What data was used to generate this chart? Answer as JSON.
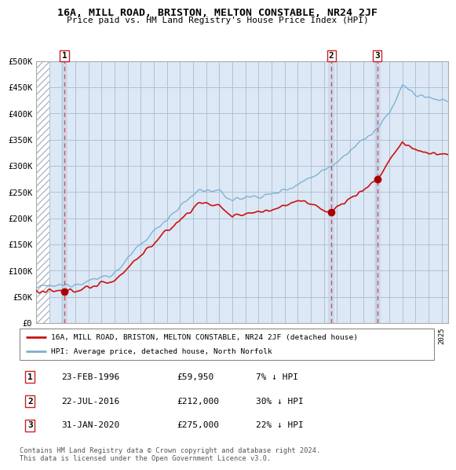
{
  "title": "16A, MILL ROAD, BRISTON, MELTON CONSTABLE, NR24 2JF",
  "subtitle": "Price paid vs. HM Land Registry's House Price Index (HPI)",
  "legend_line1": "16A, MILL ROAD, BRISTON, MELTON CONSTABLE, NR24 2JF (detached house)",
  "legend_line2": "HPI: Average price, detached house, North Norfolk",
  "footer": "Contains HM Land Registry data © Crown copyright and database right 2024.\nThis data is licensed under the Open Government Licence v3.0.",
  "sale_prices": [
    59950,
    212000,
    275000
  ],
  "sale_labels": [
    "1",
    "2",
    "3"
  ],
  "sale_annotations": [
    "23-FEB-1996",
    "22-JUL-2016",
    "31-JAN-2020"
  ],
  "sale_prices_str": [
    "£59,950",
    "£212,000",
    "£275,000"
  ],
  "sale_hpi_diff": [
    "7% ↓ HPI",
    "30% ↓ HPI",
    "22% ↓ HPI"
  ],
  "hpi_color": "#7bafd4",
  "price_color": "#cc1111",
  "marker_color": "#aa0000",
  "dashed_color": "#cc2222",
  "ylim": [
    0,
    500000
  ],
  "yticks": [
    0,
    50000,
    100000,
    150000,
    200000,
    250000,
    300000,
    350000,
    400000,
    450000,
    500000
  ],
  "ytick_labels": [
    "£0",
    "£50K",
    "£100K",
    "£150K",
    "£200K",
    "£250K",
    "£300K",
    "£350K",
    "£400K",
    "£450K",
    "£500K"
  ],
  "xlim_start": 1994.0,
  "xlim_end": 2025.5,
  "chart_bg_color": "#dce8f5",
  "hatch_color": "#b0b8c8",
  "grid_color": "#aabbcc",
  "sale_vline_color": "#dd3333"
}
